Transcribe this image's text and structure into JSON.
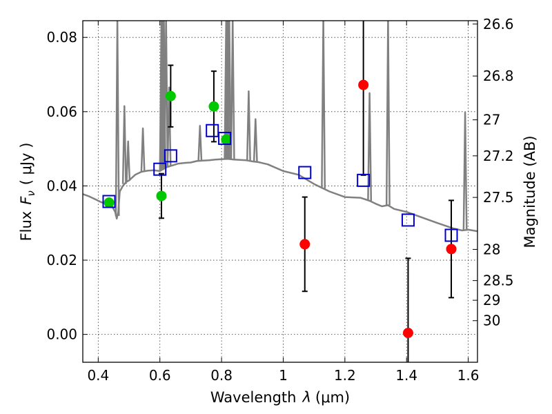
{
  "chart_data": {
    "type": "scatter",
    "xlabel": "Wavelength",
    "xlabel_symbol": "λ",
    "xlabel_unit": "(μm)",
    "ylabel": "Flux",
    "ylabel_symbol": "F",
    "ylabel_subscript": "ν",
    "ylabel_unit": "( μJy )",
    "ylabel_right": "Magnitude (AB)",
    "xlim": [
      0.35,
      1.63
    ],
    "ylim": [
      -0.0075,
      0.0845
    ],
    "x_ticks": [
      {
        "value": 0.4,
        "label": "0.4"
      },
      {
        "value": 0.6,
        "label": "0.6"
      },
      {
        "value": 0.8,
        "label": "0.8"
      },
      {
        "value": 1.0,
        "label": "1"
      },
      {
        "value": 1.2,
        "label": "1.2"
      },
      {
        "value": 1.4,
        "label": "1.4"
      },
      {
        "value": 1.6,
        "label": "1.6"
      }
    ],
    "y_ticks": [
      {
        "value": 0.0,
        "label": "0.00"
      },
      {
        "value": 0.02,
        "label": "0.02"
      },
      {
        "value": 0.04,
        "label": "0.04"
      },
      {
        "value": 0.06,
        "label": "0.06"
      },
      {
        "value": 0.08,
        "label": "0.08"
      }
    ],
    "right_ticks": [
      {
        "flux": 0.0836,
        "label": "26.6"
      },
      {
        "flux": 0.0696,
        "label": "26.8"
      },
      {
        "flux": 0.0578,
        "label": "27"
      },
      {
        "flux": 0.0481,
        "label": "27.2"
      },
      {
        "flux": 0.0369,
        "label": "27.5"
      },
      {
        "flux": 0.0229,
        "label": "28"
      },
      {
        "flux": 0.0145,
        "label": "28.5"
      },
      {
        "flux": 0.0092,
        "label": "29"
      },
      {
        "flux": 0.0037,
        "label": "30"
      }
    ],
    "grid": true,
    "series": [
      {
        "name": "model SED",
        "style": "line",
        "color": "#808080",
        "x": [
          0.35,
          0.37,
          0.39,
          0.41,
          0.43,
          0.445,
          0.455,
          0.46,
          0.465,
          0.47,
          0.48,
          0.49,
          0.5,
          0.52,
          0.54,
          0.56,
          0.58,
          0.6,
          0.62,
          0.64,
          0.66,
          0.68,
          0.7,
          0.72,
          0.74,
          0.76,
          0.78,
          0.8,
          0.82,
          0.84,
          0.86,
          0.88,
          0.9,
          0.92,
          0.95,
          1.0,
          1.05,
          1.1,
          1.15,
          1.2,
          1.25,
          1.28,
          1.3,
          1.32,
          1.34,
          1.36,
          1.4,
          1.45,
          1.5,
          1.55,
          1.58,
          1.6,
          1.63
        ],
        "y": [
          0.0378,
          0.0372,
          0.0364,
          0.0356,
          0.0352,
          0.0345,
          0.033,
          0.0312,
          0.033,
          0.0385,
          0.04,
          0.041,
          0.0415,
          0.043,
          0.0438,
          0.0441,
          0.0442,
          0.044,
          0.045,
          0.0455,
          0.046,
          0.0462,
          0.0463,
          0.0467,
          0.0468,
          0.0469,
          0.0471,
          0.0472,
          0.0473,
          0.0471,
          0.047,
          0.0469,
          0.0466,
          0.0464,
          0.0458,
          0.044,
          0.043,
          0.0405,
          0.0385,
          0.037,
          0.0368,
          0.036,
          0.0352,
          0.0345,
          0.0348,
          0.0338,
          0.033,
          0.0315,
          0.03,
          0.0286,
          0.028,
          0.0282,
          0.0278
        ]
      },
      {
        "name": "emission lines",
        "style": "line",
        "color": "#808080",
        "x": [
          0.462,
          0.485,
          0.497,
          0.545,
          0.605,
          0.609,
          0.613,
          0.62,
          0.63,
          0.73,
          0.815,
          0.82,
          0.825,
          0.836,
          0.888,
          0.91,
          1.13,
          1.34,
          1.28,
          1.59
        ],
        "y": [
          0.085,
          0.0615,
          0.052,
          0.0555,
          0.085,
          0.085,
          0.085,
          0.085,
          0.0665,
          0.0562,
          0.085,
          0.085,
          0.085,
          0.085,
          0.0655,
          0.058,
          0.085,
          0.085,
          0.065,
          0.0598
        ]
      },
      {
        "name": "model photometry",
        "style": "open-square",
        "color": "#0000cc",
        "x": [
          0.435,
          0.6,
          0.635,
          0.77,
          0.81,
          1.07,
          1.26,
          1.405,
          1.545
        ],
        "y": [
          0.0358,
          0.0445,
          0.0481,
          0.0549,
          0.0528,
          0.0436,
          0.0415,
          0.0308,
          0.0267
        ]
      },
      {
        "name": "detections",
        "style": "filled-circle",
        "color": "#00c800",
        "x": [
          0.435,
          0.605,
          0.635,
          0.775,
          0.815
        ],
        "y": [
          0.0355,
          0.0373,
          0.0642,
          0.0614,
          0.0525
        ],
        "err": [
          0,
          0.006,
          0.0083,
          0.0095,
          0
        ]
      },
      {
        "name": "non-detections",
        "style": "filled-circle",
        "color": "#ff0000",
        "x": [
          1.07,
          1.26,
          1.405,
          1.545
        ],
        "y": [
          0.0243,
          0.0672,
          0.0004,
          0.023
        ],
        "err": [
          0.0127,
          0.0243,
          0.0201,
          0.0131
        ]
      }
    ]
  }
}
